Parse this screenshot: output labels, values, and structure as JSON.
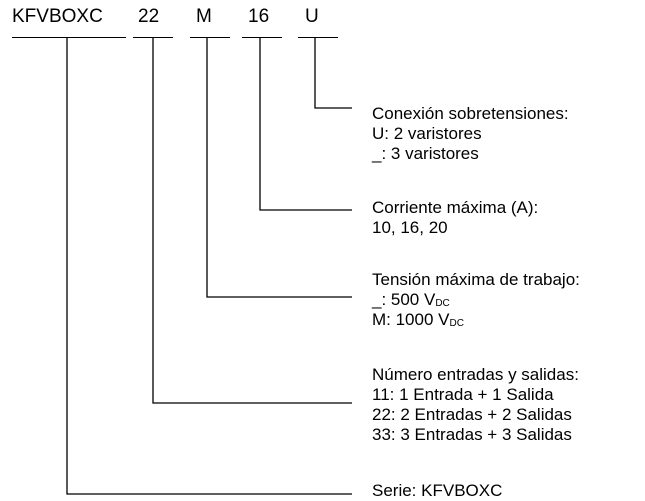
{
  "code": {
    "series": "KFVBOXC",
    "io": "22",
    "voltage": "M",
    "current": "16",
    "surge": "U"
  },
  "descriptions": {
    "surge": {
      "title": "Conexión sobretensiones:",
      "opt1": "U: 2 varistores",
      "opt2": "_: 3 varistores"
    },
    "current": {
      "title": "Corriente máxima (A):",
      "opt1": "10, 16, 20"
    },
    "voltage": {
      "title": "Tensión máxima de trabajo:",
      "opt1_prefix": "_: 500 V",
      "opt1_sub": "DC",
      "opt2_prefix": "M: 1000 V",
      "opt2_sub": "DC"
    },
    "io": {
      "title": "Número entradas y salidas:",
      "opt1": "11: 1 Entrada + 1 Salida",
      "opt2": "22: 2 Entradas + 2 Salidas",
      "opt3": "33: 3 Entradas + 3 Salidas"
    },
    "series": {
      "title": "Serie: KFVBOXC"
    }
  }
}
